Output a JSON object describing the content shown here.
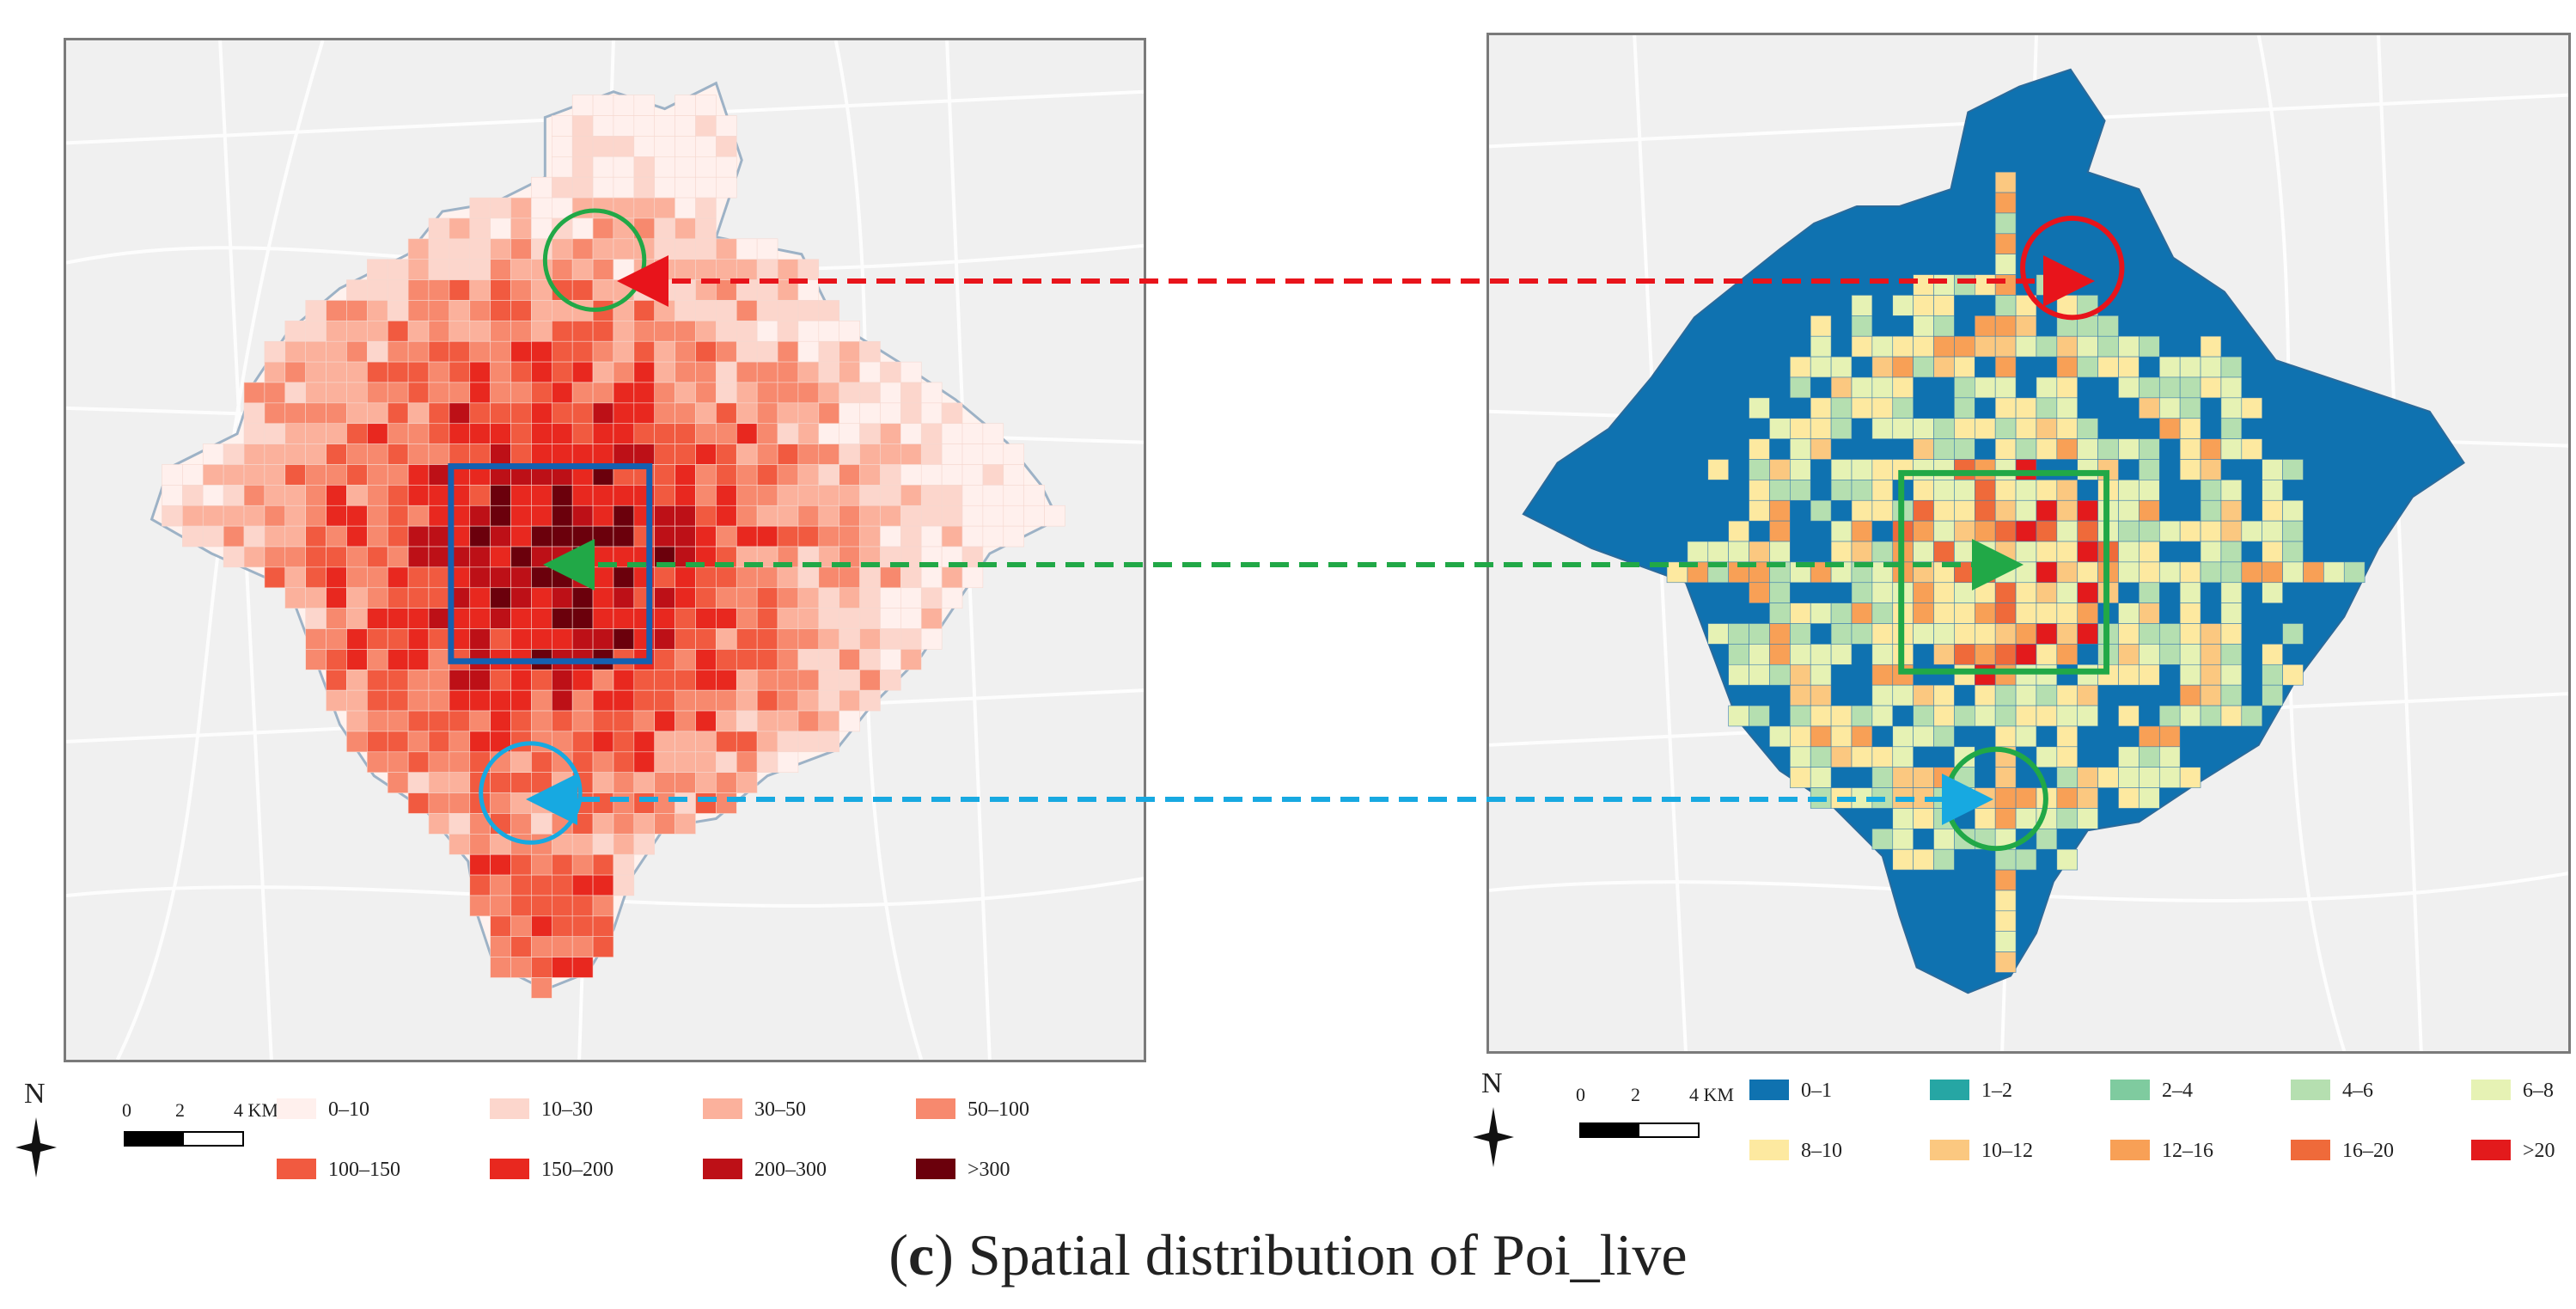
{
  "caption": {
    "open": "(",
    "letter": "c",
    "close": ")",
    "text": " Spatial distribution of Poi_live"
  },
  "north_label": "N",
  "scale_bar": {
    "zero": "0",
    "mid": "2",
    "end": "4 KM"
  },
  "left_legend": [
    {
      "label": "0–10",
      "color": "#fff0ed"
    },
    {
      "label": "10–30",
      "color": "#fcd6cc"
    },
    {
      "label": "30–50",
      "color": "#fbb19c"
    },
    {
      "label": "50–100",
      "color": "#f7896e"
    },
    {
      "label": "100–150",
      "color": "#f15a40"
    },
    {
      "label": "150–200",
      "color": "#e8281f"
    },
    {
      "label": "200–300",
      "color": "#bd1017"
    },
    {
      "label": ">300",
      "color": "#6b000c"
    }
  ],
  "right_legend": [
    {
      "label": "0–1",
      "color": "#0f72b0"
    },
    {
      "label": "1–2",
      "color": "#26a6a4"
    },
    {
      "label": "2–4",
      "color": "#7fcb9f"
    },
    {
      "label": "4–6",
      "color": "#b5dfb0"
    },
    {
      "label": "6–8",
      "color": "#e6f2b4"
    },
    {
      "label": "8–10",
      "color": "#fde9a0"
    },
    {
      "label": "10–12",
      "color": "#fbc880"
    },
    {
      "label": "12–16",
      "color": "#f8a056"
    },
    {
      "label": "16–20",
      "color": "#ef6a3a"
    },
    {
      "label": ">20",
      "color": "#e31a1c"
    }
  ],
  "colors": {
    "frame": "#7a7a7a",
    "basemap": "#f0f0f0",
    "road": "#ffffff",
    "city_outline": "#9db2c6",
    "red_arrow": "#e8141b",
    "green_arrow": "#21a847",
    "blue_arrow": "#17a9e1",
    "blue_box": "#1560b0",
    "green_box": "#21a847"
  },
  "annotations": {
    "left_highlight_box": "blue square",
    "right_highlight_box": "green square",
    "left_circles": [
      "green",
      "blue"
    ],
    "right_circles": [
      "red",
      "green"
    ],
    "arrows": [
      "red dashed",
      "green dashed",
      "blue dashed"
    ]
  }
}
